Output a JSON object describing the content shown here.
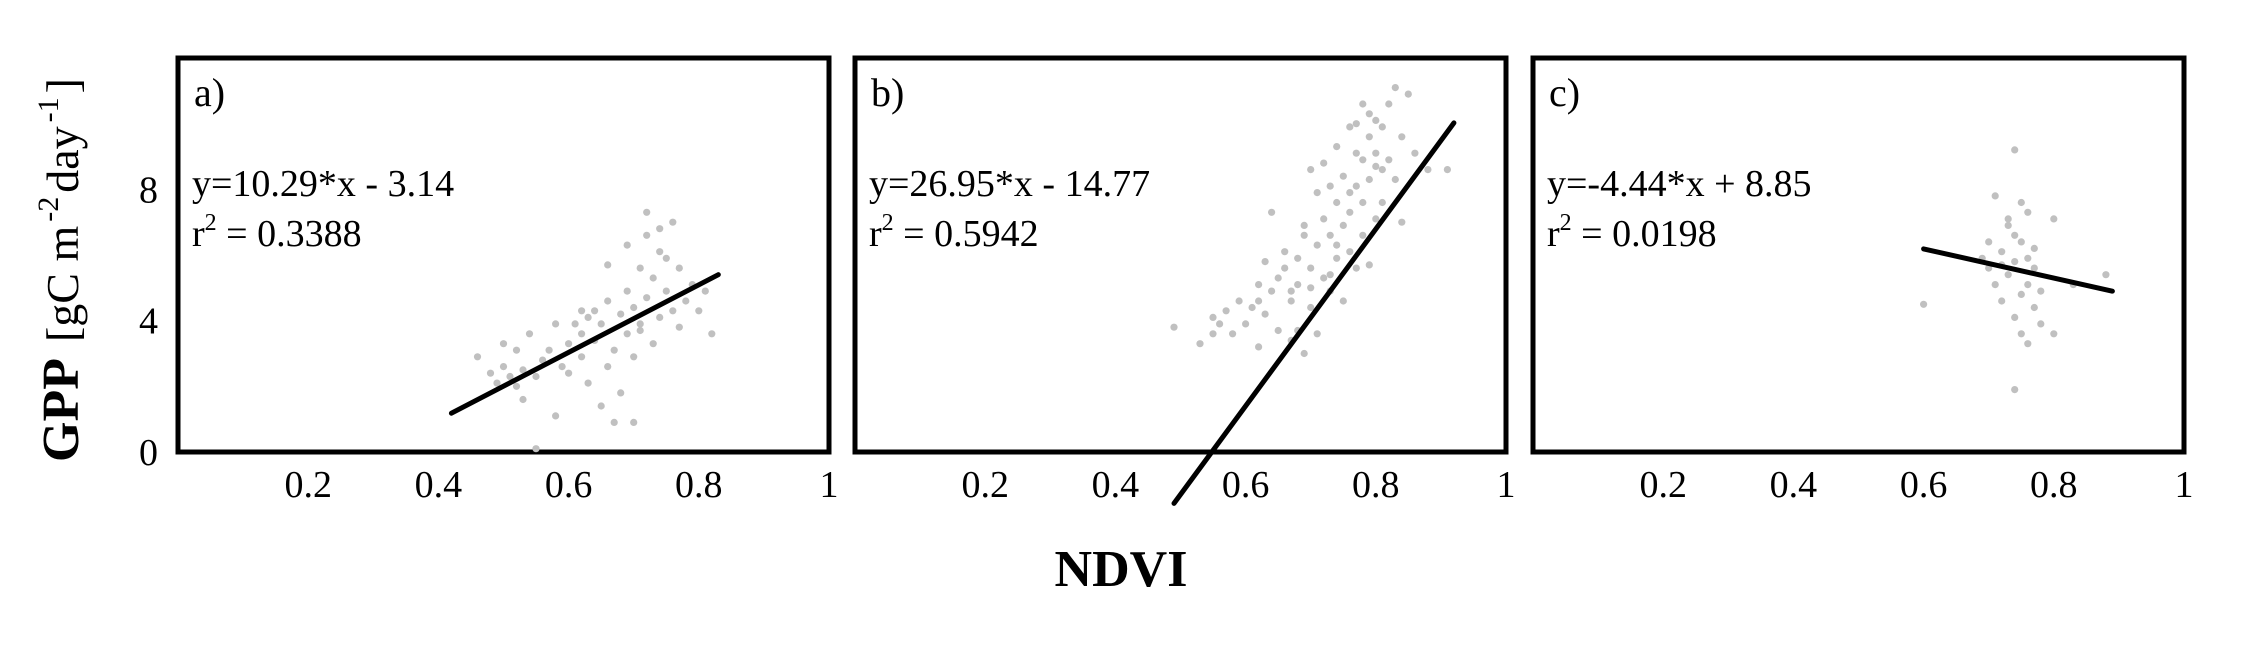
{
  "figure": {
    "ylabel_main": "GPP",
    "ylabel_unit_parts": [
      "[gC m",
      "-2",
      " day",
      "-1",
      "]"
    ],
    "xlabel": "NDVI"
  },
  "colors": {
    "points": "#c0c0c0",
    "fit_line": "#000000",
    "frame": "#000000"
  },
  "chart_data": [
    {
      "type": "scatter",
      "panel": "a)",
      "xlim": [
        0,
        1
      ],
      "ylim": [
        0,
        12
      ],
      "xticks": [
        "0.2",
        "0.4",
        "0.6",
        "0.8",
        "1"
      ],
      "xtick_values": [
        0.2,
        0.4,
        0.6,
        0.8,
        1
      ],
      "yticks": [
        "0",
        "4",
        "8"
      ],
      "ytick_values": [
        0,
        4,
        8
      ],
      "xlabel": "NDVI",
      "ylabel": "GPP [gC m-2 day-1]",
      "grid": false,
      "equation": "y=10.29*x - 3.14",
      "r2_prefix": "r",
      "r2_sup": "2",
      "r2_value": " = 0.3388",
      "fit": {
        "slope": 10.29,
        "intercept": -3.14,
        "x_range": [
          0.42,
          0.83
        ]
      },
      "points": [
        [
          0.46,
          2.9
        ],
        [
          0.48,
          2.4
        ],
        [
          0.49,
          2.1
        ],
        [
          0.5,
          2.6
        ],
        [
          0.5,
          3.3
        ],
        [
          0.51,
          2.3
        ],
        [
          0.52,
          2.0
        ],
        [
          0.52,
          3.1
        ],
        [
          0.53,
          1.6
        ],
        [
          0.54,
          3.6
        ],
        [
          0.55,
          0.1
        ],
        [
          0.55,
          2.3
        ],
        [
          0.56,
          2.8
        ],
        [
          0.57,
          3.1
        ],
        [
          0.58,
          1.1
        ],
        [
          0.59,
          2.6
        ],
        [
          0.6,
          3.3
        ],
        [
          0.61,
          3.9
        ],
        [
          0.62,
          2.9
        ],
        [
          0.62,
          3.6
        ],
        [
          0.63,
          4.1
        ],
        [
          0.63,
          2.1
        ],
        [
          0.64,
          3.4
        ],
        [
          0.64,
          4.3
        ],
        [
          0.65,
          1.4
        ],
        [
          0.65,
          3.9
        ],
        [
          0.66,
          2.6
        ],
        [
          0.66,
          4.6
        ],
        [
          0.67,
          0.9
        ],
        [
          0.67,
          3.1
        ],
        [
          0.68,
          4.2
        ],
        [
          0.68,
          1.8
        ],
        [
          0.69,
          3.6
        ],
        [
          0.69,
          4.9
        ],
        [
          0.7,
          2.9
        ],
        [
          0.7,
          4.4
        ],
        [
          0.7,
          0.9
        ],
        [
          0.71,
          5.6
        ],
        [
          0.71,
          3.9
        ],
        [
          0.72,
          6.6
        ],
        [
          0.72,
          4.7
        ],
        [
          0.72,
          7.3
        ],
        [
          0.73,
          3.3
        ],
        [
          0.73,
          5.3
        ],
        [
          0.74,
          4.1
        ],
        [
          0.74,
          6.1
        ],
        [
          0.75,
          4.9
        ],
        [
          0.75,
          5.9
        ],
        [
          0.76,
          4.3
        ],
        [
          0.76,
          7.0
        ],
        [
          0.77,
          5.6
        ],
        [
          0.77,
          3.8
        ],
        [
          0.78,
          4.6
        ],
        [
          0.79,
          5.1
        ],
        [
          0.8,
          4.3
        ],
        [
          0.81,
          4.9
        ],
        [
          0.82,
          3.6
        ],
        [
          0.66,
          5.7
        ],
        [
          0.69,
          6.3
        ],
        [
          0.74,
          6.8
        ],
        [
          0.62,
          4.3
        ],
        [
          0.6,
          2.4
        ],
        [
          0.58,
          3.9
        ],
        [
          0.53,
          2.5
        ],
        [
          0.71,
          3.7
        ]
      ]
    },
    {
      "type": "scatter",
      "panel": "b)",
      "xlim": [
        0,
        1
      ],
      "ylim": [
        0,
        12
      ],
      "xticks": [
        "0.2",
        "0.4",
        "0.6",
        "0.8",
        "1"
      ],
      "xtick_values": [
        0.2,
        0.4,
        0.6,
        0.8,
        1
      ],
      "yticks": [
        "0",
        "4",
        "8"
      ],
      "ytick_values": [
        0,
        4,
        8
      ],
      "xlabel": "NDVI",
      "ylabel": "GPP [gC m-2 day-1]",
      "grid": false,
      "equation": "y=26.95*x - 14.77",
      "r2_prefix": "r",
      "r2_sup": "2",
      "r2_value": " = 0.5942",
      "fit": {
        "slope": 26.95,
        "intercept": -14.77,
        "x_range": [
          0.49,
          0.92
        ]
      },
      "points": [
        [
          0.49,
          3.8
        ],
        [
          0.53,
          3.3
        ],
        [
          0.55,
          3.6
        ],
        [
          0.55,
          4.1
        ],
        [
          0.56,
          3.9
        ],
        [
          0.57,
          4.3
        ],
        [
          0.58,
          3.6
        ],
        [
          0.59,
          4.6
        ],
        [
          0.6,
          3.9
        ],
        [
          0.61,
          4.4
        ],
        [
          0.62,
          3.2
        ],
        [
          0.62,
          5.1
        ],
        [
          0.63,
          5.8
        ],
        [
          0.63,
          4.2
        ],
        [
          0.64,
          7.3
        ],
        [
          0.64,
          4.9
        ],
        [
          0.65,
          5.3
        ],
        [
          0.65,
          3.7
        ],
        [
          0.66,
          5.6
        ],
        [
          0.66,
          6.1
        ],
        [
          0.67,
          4.6
        ],
        [
          0.67,
          3.4
        ],
        [
          0.68,
          5.9
        ],
        [
          0.68,
          5.1
        ],
        [
          0.69,
          6.6
        ],
        [
          0.69,
          3.0
        ],
        [
          0.7,
          5.6
        ],
        [
          0.7,
          8.6
        ],
        [
          0.7,
          4.4
        ],
        [
          0.71,
          7.9
        ],
        [
          0.71,
          6.3
        ],
        [
          0.71,
          3.6
        ],
        [
          0.72,
          8.8
        ],
        [
          0.72,
          5.3
        ],
        [
          0.72,
          7.1
        ],
        [
          0.73,
          6.6
        ],
        [
          0.73,
          4.9
        ],
        [
          0.73,
          8.1
        ],
        [
          0.74,
          9.3
        ],
        [
          0.74,
          7.6
        ],
        [
          0.74,
          5.9
        ],
        [
          0.75,
          6.9
        ],
        [
          0.75,
          8.4
        ],
        [
          0.75,
          4.6
        ],
        [
          0.76,
          7.3
        ],
        [
          0.76,
          9.9
        ],
        [
          0.76,
          6.1
        ],
        [
          0.77,
          8.1
        ],
        [
          0.77,
          9.1
        ],
        [
          0.77,
          5.6
        ],
        [
          0.78,
          7.6
        ],
        [
          0.78,
          10.6
        ],
        [
          0.78,
          8.9
        ],
        [
          0.78,
          6.6
        ],
        [
          0.79,
          9.6
        ],
        [
          0.79,
          8.3
        ],
        [
          0.79,
          10.3
        ],
        [
          0.79,
          5.7
        ],
        [
          0.8,
          9.1
        ],
        [
          0.8,
          7.1
        ],
        [
          0.8,
          10.1
        ],
        [
          0.81,
          8.6
        ],
        [
          0.81,
          9.9
        ],
        [
          0.81,
          7.6
        ],
        [
          0.82,
          8.9
        ],
        [
          0.82,
          10.6
        ],
        [
          0.83,
          11.1
        ],
        [
          0.83,
          8.3
        ],
        [
          0.84,
          7.0
        ],
        [
          0.84,
          9.6
        ],
        [
          0.85,
          10.9
        ],
        [
          0.86,
          9.1
        ],
        [
          0.88,
          8.6
        ],
        [
          0.91,
          8.6
        ],
        [
          0.68,
          3.7
        ],
        [
          0.67,
          4.9
        ],
        [
          0.74,
          6.3
        ],
        [
          0.76,
          7.9
        ],
        [
          0.62,
          4.6
        ],
        [
          0.7,
          5.0
        ],
        [
          0.73,
          5.4
        ],
        [
          0.8,
          8.7
        ],
        [
          0.77,
          10.0
        ],
        [
          0.69,
          6.9
        ]
      ]
    },
    {
      "type": "scatter",
      "panel": "c)",
      "xlim": [
        0,
        1
      ],
      "ylim": [
        0,
        12
      ],
      "xticks": [
        "0.2",
        "0.4",
        "0.6",
        "0.8",
        "1"
      ],
      "xtick_values": [
        0.2,
        0.4,
        0.6,
        0.8,
        1
      ],
      "yticks": [
        "0",
        "4",
        "8"
      ],
      "ytick_values": [
        0,
        4,
        8
      ],
      "xlabel": "NDVI",
      "ylabel": "GPP [gC m-2 day-1]",
      "grid": false,
      "equation": "y=-4.44*x + 8.85",
      "r2_prefix": "r",
      "r2_sup": "2",
      "r2_value": " = 0.0198",
      "fit": {
        "slope": -4.44,
        "intercept": 8.85,
        "x_range": [
          0.6,
          0.89
        ]
      },
      "points": [
        [
          0.6,
          4.5
        ],
        [
          0.69,
          5.9
        ],
        [
          0.7,
          5.6
        ],
        [
          0.7,
          6.4
        ],
        [
          0.71,
          7.8
        ],
        [
          0.71,
          5.1
        ],
        [
          0.72,
          6.1
        ],
        [
          0.72,
          4.6
        ],
        [
          0.73,
          7.1
        ],
        [
          0.73,
          5.4
        ],
        [
          0.73,
          6.9
        ],
        [
          0.74,
          9.2
        ],
        [
          0.74,
          1.9
        ],
        [
          0.74,
          5.8
        ],
        [
          0.74,
          4.1
        ],
        [
          0.75,
          7.6
        ],
        [
          0.75,
          6.4
        ],
        [
          0.75,
          3.6
        ],
        [
          0.76,
          5.1
        ],
        [
          0.76,
          5.9
        ],
        [
          0.76,
          3.3
        ],
        [
          0.76,
          7.3
        ],
        [
          0.77,
          4.4
        ],
        [
          0.77,
          5.6
        ],
        [
          0.78,
          3.9
        ],
        [
          0.78,
          4.9
        ],
        [
          0.8,
          7.1
        ],
        [
          0.8,
          3.6
        ],
        [
          0.83,
          5.1
        ],
        [
          0.88,
          5.4
        ],
        [
          0.72,
          5.7
        ],
        [
          0.75,
          4.8
        ],
        [
          0.77,
          6.2
        ],
        [
          0.74,
          6.6
        ]
      ]
    }
  ]
}
